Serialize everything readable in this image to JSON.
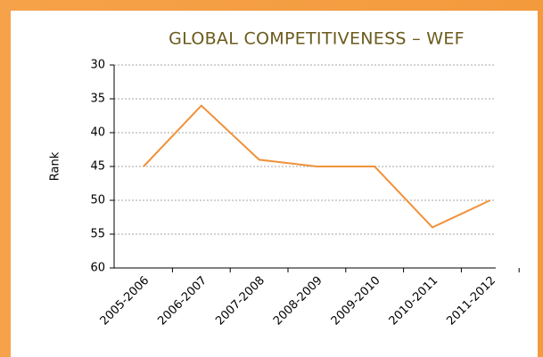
{
  "chart_data": {
    "type": "line",
    "title": "GLOBAL COMPETITIVENESS – WEF",
    "y_label": "Rank",
    "categories": [
      "2005-2006",
      "2006-2007",
      "2007-2008",
      "2008-2009",
      "2009-2010",
      "2010-2011",
      "2011-2012"
    ],
    "series": [
      {
        "name": "Rank",
        "color": "#f0913a",
        "values": [
          45,
          36,
          44,
          45,
          45,
          54,
          50
        ]
      }
    ],
    "ylim": [
      30,
      60
    ],
    "yticks": [
      30,
      35,
      40,
      45,
      50,
      55,
      60
    ],
    "y_inverted": true,
    "grid": true
  }
}
